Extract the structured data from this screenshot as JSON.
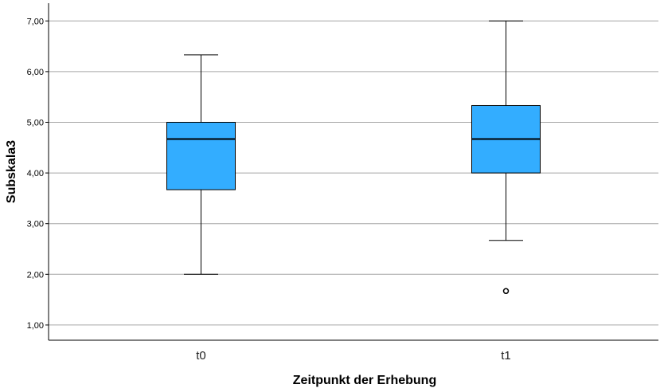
{
  "chart_data": {
    "type": "boxplot",
    "xlabel": "Zeitpunkt der Erhebung",
    "ylabel": "Subskala3",
    "ylim": [
      0.7,
      7.35
    ],
    "yticks": [
      1,
      2,
      3,
      4,
      5,
      6,
      7
    ],
    "ytick_labels": [
      "1,00",
      "2,00",
      "3,00",
      "4,00",
      "5,00",
      "6,00",
      "7,00"
    ],
    "grid": true,
    "box_color": "#33adff",
    "categories": [
      "t0",
      "t1"
    ],
    "boxes": [
      {
        "category": "t0",
        "min": 2.0,
        "q1": 3.67,
        "median": 4.67,
        "q3": 5.0,
        "max": 6.33,
        "outliers": []
      },
      {
        "category": "t1",
        "min": 2.67,
        "q1": 4.0,
        "median": 4.67,
        "q3": 5.33,
        "max": 7.0,
        "outliers": [
          1.67
        ]
      }
    ]
  }
}
